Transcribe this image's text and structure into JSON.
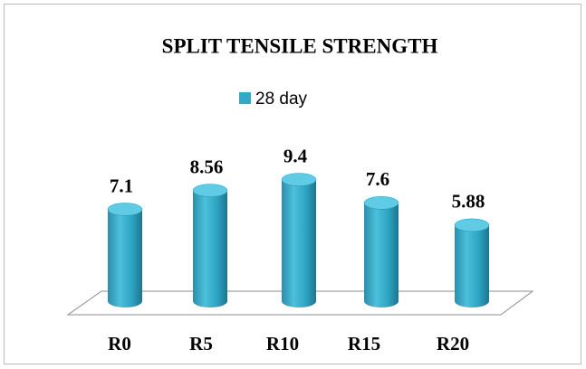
{
  "chart_data": {
    "type": "bar3d",
    "title": "SPLIT TENSILE STRENGTH",
    "categories": [
      "R0",
      "R5",
      "R10",
      "R15",
      "R20"
    ],
    "series": [
      {
        "name": "28 day",
        "color": "#31a9c8",
        "values": [
          7.1,
          8.56,
          9.4,
          7.6,
          5.88
        ]
      }
    ],
    "legend": "top"
  }
}
